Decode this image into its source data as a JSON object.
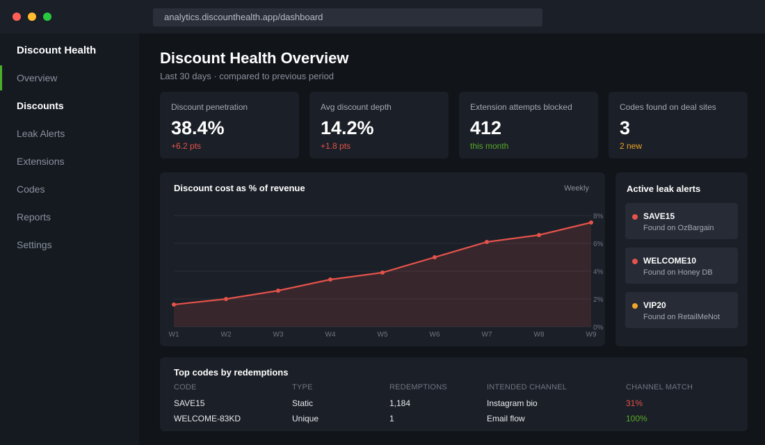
{
  "browser": {
    "url": "analytics.discounthealth.app/dashboard"
  },
  "sidebar": {
    "brand": "Discount Health",
    "items": [
      {
        "label": "Overview"
      },
      {
        "label": "Discounts"
      },
      {
        "label": "Leak Alerts"
      },
      {
        "label": "Extensions"
      },
      {
        "label": "Codes"
      },
      {
        "label": "Reports"
      },
      {
        "label": "Settings"
      }
    ]
  },
  "header": {
    "title": "Discount Health Overview",
    "subtitle": "Last 30 days · compared to previous period"
  },
  "kpis": [
    {
      "label": "Discount penetration",
      "value": "38.4%",
      "delta": "+6.2 pts",
      "delta_color": "#e5534b"
    },
    {
      "label": "Avg discount depth",
      "value": "14.2%",
      "delta": "+1.8 pts",
      "delta_color": "#e5534b"
    },
    {
      "label": "Extension attempts blocked",
      "value": "412",
      "delta": "this month",
      "delta_color": "#57ab2a"
    },
    {
      "label": "Codes found on deal sites",
      "value": "3",
      "delta": "2 new",
      "delta_color": "#f0a629"
    }
  ],
  "chart": {
    "title": "Discount cost as % of revenue",
    "period_toggle": "Weekly"
  },
  "chart_data": {
    "type": "area",
    "title": "Discount cost as % of revenue",
    "categories": [
      "W1",
      "W2",
      "W3",
      "W4",
      "W5",
      "W6",
      "W7",
      "W8",
      "W9"
    ],
    "series": [
      {
        "values": [
          1.6,
          2.0,
          2.6,
          3.4,
          3.9,
          5.0,
          6.1,
          6.6,
          7.5
        ]
      }
    ],
    "ylim": [
      0,
      8
    ],
    "y_ticks": [
      "0%",
      "2%",
      "4%",
      "6%",
      "8%"
    ],
    "color": "#e5534b",
    "grid": true
  },
  "alerts": {
    "title": "Active leak alerts",
    "items": [
      {
        "code": "SAVE15",
        "source": "Found on OzBargain",
        "color": "#e5534b"
      },
      {
        "code": "WELCOME10",
        "source": "Found on Honey DB",
        "color": "#e5534b"
      },
      {
        "code": "VIP20",
        "source": "Found on RetailMeNot",
        "color": "#f0a629"
      }
    ]
  },
  "table": {
    "title": "Top codes by redemptions",
    "columns": [
      "CODE",
      "TYPE",
      "REDEMPTIONS",
      "INTENDED CHANNEL",
      "CHANNEL MATCH"
    ],
    "rows": [
      {
        "code": "SAVE15",
        "type": "Static",
        "redemptions": "1,184",
        "channel": "Instagram bio",
        "match": "31%",
        "match_color": "#e5534b"
      },
      {
        "code": "WELCOME-83KD",
        "type": "Unique",
        "redemptions": "1",
        "channel": "Email flow",
        "match": "100%",
        "match_color": "#57ab2a"
      }
    ]
  }
}
